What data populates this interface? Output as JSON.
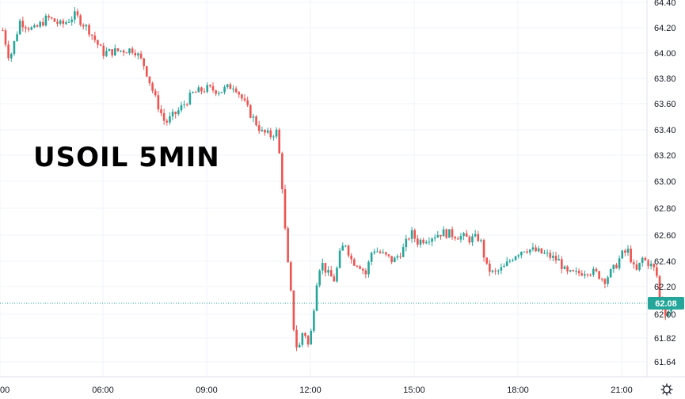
{
  "colors": {
    "up": "#26a69a",
    "down": "#ef5350",
    "grid": "#f0f3fa",
    "axis_text": "#131722",
    "last_price_line": "#26a69a",
    "background": "#ffffff"
  },
  "icons": {
    "settings": "gear-icon"
  },
  "chart_data": {
    "type": "candlestick",
    "title": "USOIL 5MIN",
    "ylim": [
      61.5,
      64.42
    ],
    "y_ticks": [
      "64.40",
      "64.20",
      "64.00",
      "63.80",
      "63.60",
      "63.40",
      "63.20",
      "63.00",
      "62.80",
      "62.60",
      "62.40",
      "62.20",
      "62.00",
      "61.82",
      "61.64"
    ],
    "x_ticks": [
      {
        "label": "00",
        "hour": 3.0
      },
      {
        "label": "06:00",
        "hour": 6.0
      },
      {
        "label": "09:00",
        "hour": 9.0
      },
      {
        "label": "12:00",
        "hour": 12.0
      },
      {
        "label": "15:00",
        "hour": 15.0
      },
      {
        "label": "18:00",
        "hour": 18.0
      },
      {
        "label": "21:00",
        "hour": 21.0
      }
    ],
    "x_range_hours": [
      3.1,
      22.5
    ],
    "last_price": {
      "value": 62.08,
      "label": "62.08"
    },
    "grid": true,
    "close_series": [
      {
        "hour": 3.1,
        "close": 64.18
      },
      {
        "hour": 3.3,
        "close": 63.95
      },
      {
        "hour": 3.6,
        "close": 64.25
      },
      {
        "hour": 4.0,
        "close": 64.18
      },
      {
        "hour": 4.4,
        "close": 64.28
      },
      {
        "hour": 4.8,
        "close": 64.22
      },
      {
        "hour": 5.2,
        "close": 64.3
      },
      {
        "hour": 5.6,
        "close": 64.18
      },
      {
        "hour": 6.0,
        "close": 64.0
      },
      {
        "hour": 6.5,
        "close": 64.02
      },
      {
        "hour": 6.9,
        "close": 64.03
      },
      {
        "hour": 7.2,
        "close": 63.9
      },
      {
        "hour": 7.5,
        "close": 63.65
      },
      {
        "hour": 7.8,
        "close": 63.45
      },
      {
        "hour": 8.2,
        "close": 63.55
      },
      {
        "hour": 8.6,
        "close": 63.68
      },
      {
        "hour": 9.0,
        "close": 63.72
      },
      {
        "hour": 9.4,
        "close": 63.7
      },
      {
        "hour": 9.8,
        "close": 63.75
      },
      {
        "hour": 10.2,
        "close": 63.55
      },
      {
        "hour": 10.6,
        "close": 63.38
      },
      {
        "hour": 10.9,
        "close": 63.35
      },
      {
        "hour": 11.0,
        "close": 63.42
      },
      {
        "hour": 11.15,
        "close": 63.1
      },
      {
        "hour": 11.3,
        "close": 62.5
      },
      {
        "hour": 11.45,
        "close": 62.1
      },
      {
        "hour": 11.55,
        "close": 61.8
      },
      {
        "hour": 11.65,
        "close": 61.72
      },
      {
        "hour": 11.8,
        "close": 61.9
      },
      {
        "hour": 11.95,
        "close": 61.75
      },
      {
        "hour": 12.05,
        "close": 61.92
      },
      {
        "hour": 12.15,
        "close": 62.2
      },
      {
        "hour": 12.3,
        "close": 62.4
      },
      {
        "hour": 12.5,
        "close": 62.3
      },
      {
        "hour": 12.7,
        "close": 62.25
      },
      {
        "hour": 12.85,
        "close": 62.45
      },
      {
        "hour": 13.0,
        "close": 62.55
      },
      {
        "hour": 13.2,
        "close": 62.4
      },
      {
        "hour": 13.4,
        "close": 62.38
      },
      {
        "hour": 13.6,
        "close": 62.3
      },
      {
        "hour": 13.8,
        "close": 62.5
      },
      {
        "hour": 14.1,
        "close": 62.45
      },
      {
        "hour": 14.4,
        "close": 62.4
      },
      {
        "hour": 14.7,
        "close": 62.5
      },
      {
        "hour": 14.9,
        "close": 62.62
      },
      {
        "hour": 15.1,
        "close": 62.55
      },
      {
        "hour": 15.4,
        "close": 62.58
      },
      {
        "hour": 15.8,
        "close": 62.62
      },
      {
        "hour": 16.2,
        "close": 62.6
      },
      {
        "hour": 16.6,
        "close": 62.57
      },
      {
        "hour": 16.9,
        "close": 62.58
      },
      {
        "hour": 17.1,
        "close": 62.35
      },
      {
        "hour": 17.3,
        "close": 62.3
      },
      {
        "hour": 17.6,
        "close": 62.35
      },
      {
        "hour": 17.9,
        "close": 62.45
      },
      {
        "hour": 18.2,
        "close": 62.5
      },
      {
        "hour": 18.6,
        "close": 62.47
      },
      {
        "hour": 18.9,
        "close": 62.44
      },
      {
        "hour": 19.2,
        "close": 62.4
      },
      {
        "hour": 19.4,
        "close": 62.3
      },
      {
        "hour": 19.7,
        "close": 62.3
      },
      {
        "hour": 20.0,
        "close": 62.33
      },
      {
        "hour": 20.3,
        "close": 62.3
      },
      {
        "hour": 20.5,
        "close": 62.25
      },
      {
        "hour": 20.8,
        "close": 62.35
      },
      {
        "hour": 21.0,
        "close": 62.45
      },
      {
        "hour": 21.2,
        "close": 62.48
      },
      {
        "hour": 21.4,
        "close": 62.3
      },
      {
        "hour": 21.6,
        "close": 62.42
      },
      {
        "hour": 21.8,
        "close": 62.38
      },
      {
        "hour": 22.0,
        "close": 62.32
      },
      {
        "hour": 22.1,
        "close": 62.1
      },
      {
        "hour": 22.2,
        "close": 62.05
      },
      {
        "hour": 22.3,
        "close": 62.0
      },
      {
        "hour": 22.45,
        "close": 62.08
      }
    ],
    "candle_interval_minutes": 5
  }
}
